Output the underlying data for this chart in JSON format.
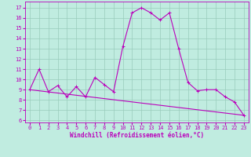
{
  "xlabel": "Windchill (Refroidissement éolien,°C)",
  "background_color": "#c0ece0",
  "line_color": "#bb00bb",
  "grid_color": "#99ccbb",
  "xlim": [
    -0.5,
    23.5
  ],
  "ylim": [
    5.8,
    17.6
  ],
  "yticks": [
    6,
    7,
    8,
    9,
    10,
    11,
    12,
    13,
    14,
    15,
    16,
    17
  ],
  "xticks": [
    0,
    1,
    2,
    3,
    4,
    5,
    6,
    7,
    8,
    9,
    10,
    11,
    12,
    13,
    14,
    15,
    16,
    17,
    18,
    19,
    20,
    21,
    22,
    23
  ],
  "curve1_x": [
    0,
    1,
    2,
    3,
    4,
    5,
    6,
    7,
    8,
    9,
    10,
    11,
    12,
    13,
    14,
    15,
    16,
    17,
    18,
    19,
    20,
    21,
    22,
    23
  ],
  "curve1_y": [
    9.0,
    11.0,
    8.8,
    9.4,
    8.3,
    9.3,
    8.3,
    10.2,
    9.5,
    8.8,
    13.2,
    16.5,
    17.0,
    16.5,
    15.8,
    16.5,
    13.0,
    9.7,
    8.9,
    9.0,
    9.0,
    8.3,
    7.8,
    6.5
  ],
  "curve2_x": [
    0,
    23
  ],
  "curve2_y": [
    9.0,
    6.5
  ],
  "figwidth": 3.2,
  "figheight": 2.0,
  "dpi": 100
}
